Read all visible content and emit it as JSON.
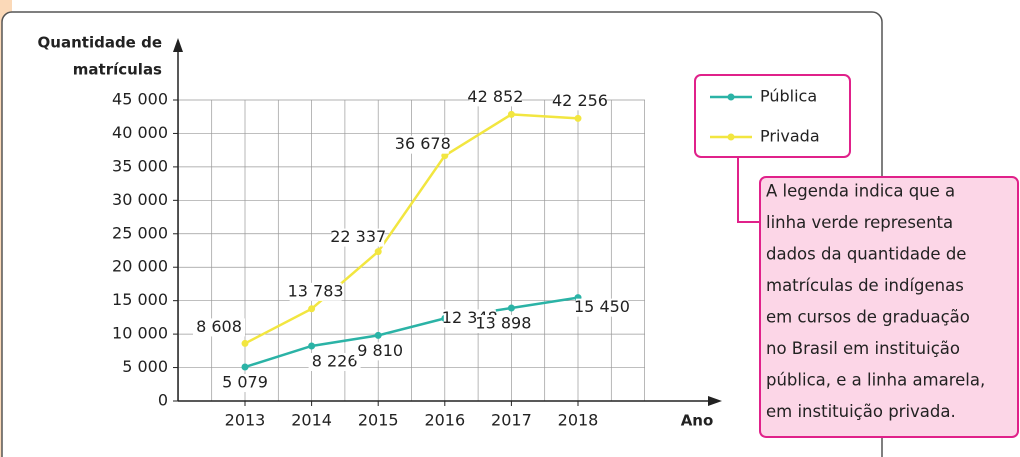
{
  "chart_data": {
    "type": "line",
    "y_label": [
      "Quantidade de",
      "matrículas"
    ],
    "x_label": "Ano",
    "categories": [
      "2013",
      "2014",
      "2015",
      "2016",
      "2017",
      "2018"
    ],
    "series": [
      {
        "name": "Pública",
        "color": "#2bb3a6",
        "values": [
          5079,
          8226,
          9810,
          12348,
          13898,
          15450
        ],
        "value_labels": [
          "5 079",
          "8 226",
          "9 810",
          "12 348",
          "13 898",
          "15 450"
        ]
      },
      {
        "name": "Privada",
        "color": "#f2e640",
        "values": [
          8608,
          13783,
          22337,
          36678,
          42852,
          42256
        ],
        "value_labels": [
          "8 608",
          "13 783",
          "22 337",
          "36 678",
          "42 852",
          "42 256"
        ]
      }
    ],
    "ylim": [
      0,
      45000
    ],
    "yticks": [
      0,
      {
        "value": 5000,
        "label": "5 000"
      },
      {
        "value": 10000,
        "label": "10 000"
      },
      {
        "value": 15000,
        "label": "15 000"
      },
      {
        "value": 20000,
        "label": "20 000"
      },
      {
        "value": 25000,
        "label": "25 000"
      },
      {
        "value": 30000,
        "label": "30 000"
      },
      {
        "value": 35000,
        "label": "35 000"
      },
      {
        "value": 40000,
        "label": "40 000"
      },
      {
        "value": 45000,
        "label": "45 000"
      }
    ],
    "grid": true,
    "legend": "upper right",
    "annotation": [
      "A legenda indica que a",
      "linha verde representa",
      "dados da quantidade de",
      "matrículas de indígenas",
      "em cursos de graduação",
      "no Brasil em instituição",
      "pública, e a linha amarela,",
      "em instituição privada."
    ]
  }
}
